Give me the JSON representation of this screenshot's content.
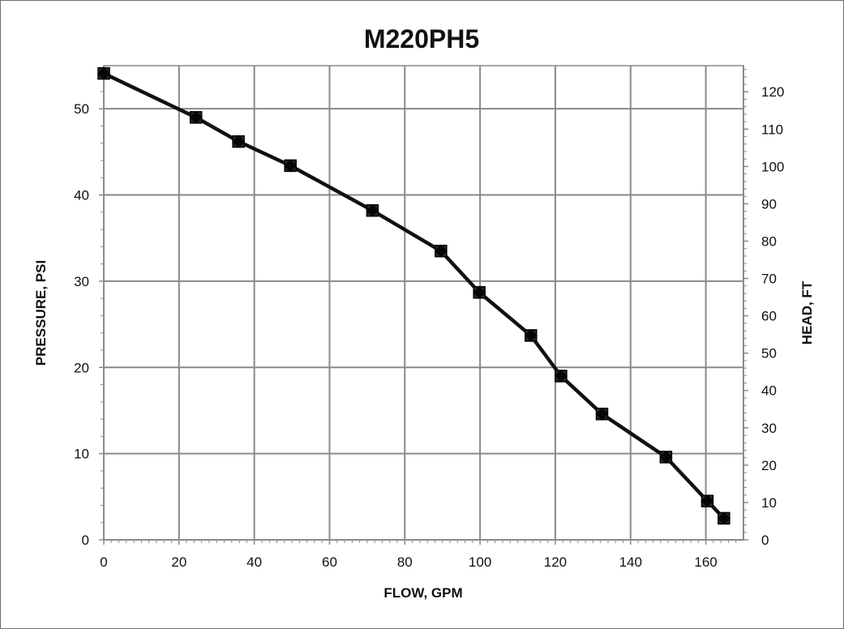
{
  "chart_data": {
    "type": "line",
    "title": "M220PH5",
    "xlabel": "FLOW, GPM",
    "ylabel": "PRESSURE, PSI",
    "y2label": "HEAD, FT",
    "xlim": [
      0,
      170
    ],
    "ylim": [
      0,
      55
    ],
    "y2lim": [
      0,
      127
    ],
    "xticks": [
      0,
      20,
      40,
      60,
      80,
      100,
      120,
      140,
      160
    ],
    "yticks": [
      0,
      10,
      20,
      30,
      40,
      50
    ],
    "y2ticks": [
      0,
      10,
      20,
      30,
      40,
      50,
      60,
      70,
      80,
      90,
      100,
      110,
      120
    ],
    "grid": true,
    "legend": "none",
    "series": [
      {
        "marker": "square",
        "color": "#111111",
        "x": [
          0,
          24.5,
          35.8,
          49.6,
          71.4,
          89.6,
          99.8,
          113.5,
          121.5,
          132.4,
          149.4,
          160.4,
          164.8
        ],
        "y": [
          54.1,
          49.0,
          46.2,
          43.4,
          38.2,
          33.5,
          28.7,
          23.7,
          19.0,
          14.6,
          9.6,
          4.5,
          2.5
        ]
      }
    ]
  }
}
